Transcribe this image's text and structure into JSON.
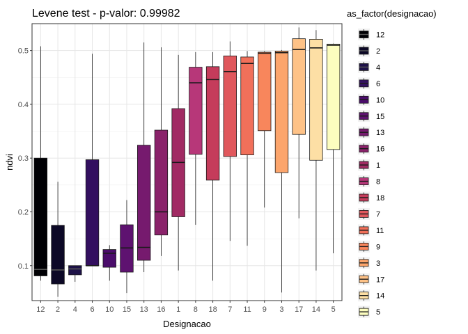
{
  "chart_data": {
    "type": "box",
    "title": "Levene test - p-valor:  0.99982",
    "xlabel": "Designacao",
    "ylabel": "ndvi",
    "ylim": [
      0.035,
      0.55
    ],
    "yticks": [
      0.1,
      0.2,
      0.3,
      0.4,
      0.5
    ],
    "ytick_labels": [
      "0.1",
      "0.2",
      "0.3",
      "0.4",
      "0.5"
    ],
    "grid": true,
    "legend": {
      "title": "as_factor(designacao)",
      "placement": "right"
    },
    "categories": [
      "12",
      "2",
      "4",
      "6",
      "10",
      "15",
      "13",
      "16",
      "1",
      "8",
      "18",
      "7",
      "11",
      "9",
      "3",
      "17",
      "14",
      "5"
    ],
    "colors": [
      "#000004",
      "#0c0826",
      "#1d1147",
      "#330f5f",
      "#4b0c6b",
      "#5e1270",
      "#761a6e",
      "#8a226a",
      "#a12a63",
      "#b73779",
      "#c53c5b",
      "#e0575c",
      "#f1705a",
      "#f8865c",
      "#fca56c",
      "#fec287",
      "#fddfa5",
      "#fcfdbf"
    ],
    "boxes": [
      {
        "category": "12",
        "min": 0.072,
        "q1": 0.081,
        "median": 0.093,
        "q3": 0.3,
        "max": 0.508
      },
      {
        "category": "2",
        "min": 0.042,
        "q1": 0.066,
        "median": 0.092,
        "q3": 0.175,
        "max": 0.256
      },
      {
        "category": "4",
        "min": 0.07,
        "q1": 0.083,
        "median": 0.094,
        "q3": 0.1,
        "max": 0.1
      },
      {
        "category": "6",
        "min": 0.1,
        "q1": 0.1,
        "median": 0.1,
        "q3": 0.297,
        "max": 0.494
      },
      {
        "category": "10",
        "min": 0.072,
        "q1": 0.097,
        "median": 0.123,
        "q3": 0.13,
        "max": 0.138
      },
      {
        "category": "15",
        "min": 0.049,
        "q1": 0.088,
        "median": 0.133,
        "q3": 0.176,
        "max": 0.222
      },
      {
        "category": "13",
        "min": 0.088,
        "q1": 0.11,
        "median": 0.134,
        "q3": 0.324,
        "max": 0.515
      },
      {
        "category": "16",
        "min": 0.118,
        "q1": 0.157,
        "median": 0.2,
        "q3": 0.352,
        "max": 0.506
      },
      {
        "category": "1",
        "min": 0.091,
        "q1": 0.191,
        "median": 0.292,
        "q3": 0.392,
        "max": 0.492
      },
      {
        "category": "8",
        "min": 0.176,
        "q1": 0.307,
        "median": 0.44,
        "q3": 0.469,
        "max": 0.497
      },
      {
        "category": "18",
        "min": 0.072,
        "q1": 0.259,
        "median": 0.446,
        "q3": 0.47,
        "max": 0.497
      },
      {
        "category": "7",
        "min": 0.146,
        "q1": 0.303,
        "median": 0.461,
        "q3": 0.49,
        "max": 0.517
      },
      {
        "category": "11",
        "min": 0.137,
        "q1": 0.306,
        "median": 0.476,
        "q3": 0.488,
        "max": 0.499
      },
      {
        "category": "9",
        "min": 0.208,
        "q1": 0.351,
        "median": 0.495,
        "q3": 0.497,
        "max": 0.499
      },
      {
        "category": "3",
        "min": 0.05,
        "q1": 0.273,
        "median": 0.496,
        "q3": 0.499,
        "max": 0.501
      },
      {
        "category": "17",
        "min": 0.188,
        "q1": 0.344,
        "median": 0.502,
        "q3": 0.522,
        "max": 0.543
      },
      {
        "category": "14",
        "min": 0.091,
        "q1": 0.296,
        "median": 0.505,
        "q3": 0.521,
        "max": 0.538
      },
      {
        "category": "5",
        "min": 0.123,
        "q1": 0.316,
        "median": 0.51,
        "q3": 0.512,
        "max": 0.513
      }
    ]
  }
}
